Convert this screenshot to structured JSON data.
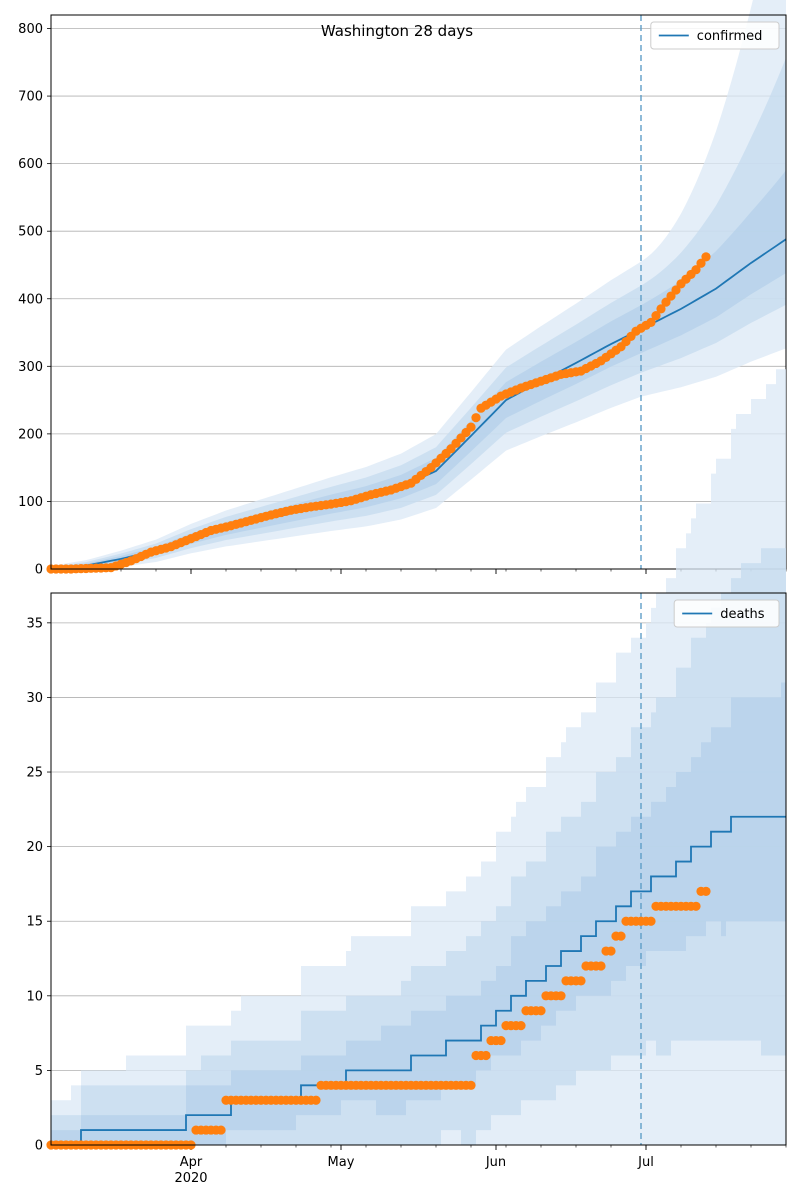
{
  "chart_data": [
    {
      "type": "line",
      "title": "Washington 28 days",
      "xlabel": "",
      "ylabel": "",
      "ylim": [
        0,
        820
      ],
      "yticks": [
        0,
        100,
        200,
        300,
        400,
        500,
        600,
        700,
        800
      ],
      "xlim": [
        "2020-03-04",
        "2020-07-29"
      ],
      "xticks": [
        {
          "date": "2020-04-01",
          "label": "Apr",
          "sublabel": "2020"
        },
        {
          "date": "2020-05-01",
          "label": "May",
          "sublabel": ""
        },
        {
          "date": "2020-06-01",
          "label": "Jun",
          "sublabel": ""
        },
        {
          "date": "2020-07-01",
          "label": "Jul",
          "sublabel": ""
        }
      ],
      "grid": "y",
      "legend_position": "top-right",
      "forecast_start": "2020-06-30",
      "series": [
        {
          "name": "confirmed",
          "kind": "median-line",
          "color": "#1f77b4",
          "x": [
            "2020-03-04",
            "2020-03-11",
            "2020-03-18",
            "2020-03-25",
            "2020-04-01",
            "2020-04-08",
            "2020-04-15",
            "2020-04-22",
            "2020-04-29",
            "2020-05-06",
            "2020-05-13",
            "2020-05-20",
            "2020-05-27",
            "2020-06-03",
            "2020-06-10",
            "2020-06-17",
            "2020-06-24",
            "2020-06-30",
            "2020-07-08",
            "2020-07-15",
            "2020-07-22",
            "2020-07-29"
          ],
          "y": [
            0,
            5,
            15,
            27,
            45,
            60,
            72,
            84,
            96,
            107,
            122,
            145,
            197,
            250,
            278,
            305,
            333,
            355,
            385,
            415,
            453,
            488
          ]
        },
        {
          "name": "confirmed_observed",
          "kind": "points",
          "color": "#ff7f0e",
          "x": [
            "2020-03-04",
            "2020-03-08",
            "2020-03-12",
            "2020-03-16",
            "2020-03-20",
            "2020-03-24",
            "2020-03-28",
            "2020-04-01",
            "2020-04-05",
            "2020-04-09",
            "2020-04-13",
            "2020-04-17",
            "2020-04-21",
            "2020-04-25",
            "2020-04-29",
            "2020-05-03",
            "2020-05-07",
            "2020-05-11",
            "2020-05-15",
            "2020-05-19",
            "2020-05-23",
            "2020-05-27",
            "2020-05-29",
            "2020-06-02",
            "2020-06-06",
            "2020-06-10",
            "2020-06-14",
            "2020-06-18",
            "2020-06-22",
            "2020-06-26",
            "2020-06-29",
            "2020-07-02",
            "2020-07-05",
            "2020-07-08",
            "2020-07-11",
            "2020-07-13"
          ],
          "y": [
            0,
            0,
            1,
            2,
            12,
            25,
            33,
            45,
            57,
            64,
            72,
            80,
            87,
            92,
            96,
            101,
            110,
            117,
            127,
            150,
            178,
            210,
            238,
            256,
            268,
            278,
            288,
            293,
            308,
            329,
            352,
            365,
            395,
            422,
            443,
            462
          ]
        },
        {
          "name": "deaths",
          "kind": "median-step",
          "color": "#1f77b4",
          "x": [
            "2020-03-04",
            "2020-03-10",
            "2020-03-31",
            "2020-04-09",
            "2020-04-23",
            "2020-05-02",
            "2020-05-15",
            "2020-05-22",
            "2020-05-29",
            "2020-06-01",
            "2020-06-04",
            "2020-06-07",
            "2020-06-11",
            "2020-06-14",
            "2020-06-18",
            "2020-06-21",
            "2020-06-25",
            "2020-06-28",
            "2020-07-02",
            "2020-07-07",
            "2020-07-10",
            "2020-07-14",
            "2020-07-18",
            "2020-07-22",
            "2020-07-26",
            "2020-07-29"
          ],
          "y": [
            0,
            1,
            2,
            3,
            4,
            5,
            6,
            7,
            8,
            9,
            10,
            11,
            12,
            13,
            14,
            15,
            16,
            17,
            18,
            19,
            20,
            21,
            22,
            22,
            22,
            22
          ]
        },
        {
          "name": "deaths_observed",
          "kind": "points",
          "color": "#ff7f0e",
          "x": [
            "2020-03-04",
            "2020-03-12",
            "2020-03-20",
            "2020-03-28",
            "2020-04-02",
            "2020-04-05",
            "2020-04-08",
            "2020-04-12",
            "2020-04-17",
            "2020-04-22",
            "2020-04-27",
            "2020-05-04",
            "2020-05-11",
            "2020-05-18",
            "2020-05-25",
            "2020-05-28",
            "2020-05-31",
            "2020-06-03",
            "2020-06-07",
            "2020-06-11",
            "2020-06-15",
            "2020-06-19",
            "2020-06-23",
            "2020-06-25",
            "2020-06-27",
            "2020-06-30",
            "2020-07-03",
            "2020-07-06",
            "2020-07-09",
            "2020-07-12",
            "2020-07-13"
          ],
          "y": [
            0,
            0,
            0,
            0,
            1,
            1,
            3,
            3,
            3,
            3,
            4,
            4,
            4,
            4,
            4,
            6,
            7,
            8,
            9,
            10,
            11,
            12,
            13,
            14,
            15,
            15,
            16,
            16,
            16,
            17,
            17
          ]
        }
      ]
    },
    {
      "type": "line",
      "title": "",
      "ylim": [
        0,
        37
      ],
      "yticks": [
        0,
        5,
        10,
        15,
        20,
        25,
        30,
        35
      ],
      "legend_position": "top-right",
      "legend": [
        "deaths"
      ]
    }
  ]
}
